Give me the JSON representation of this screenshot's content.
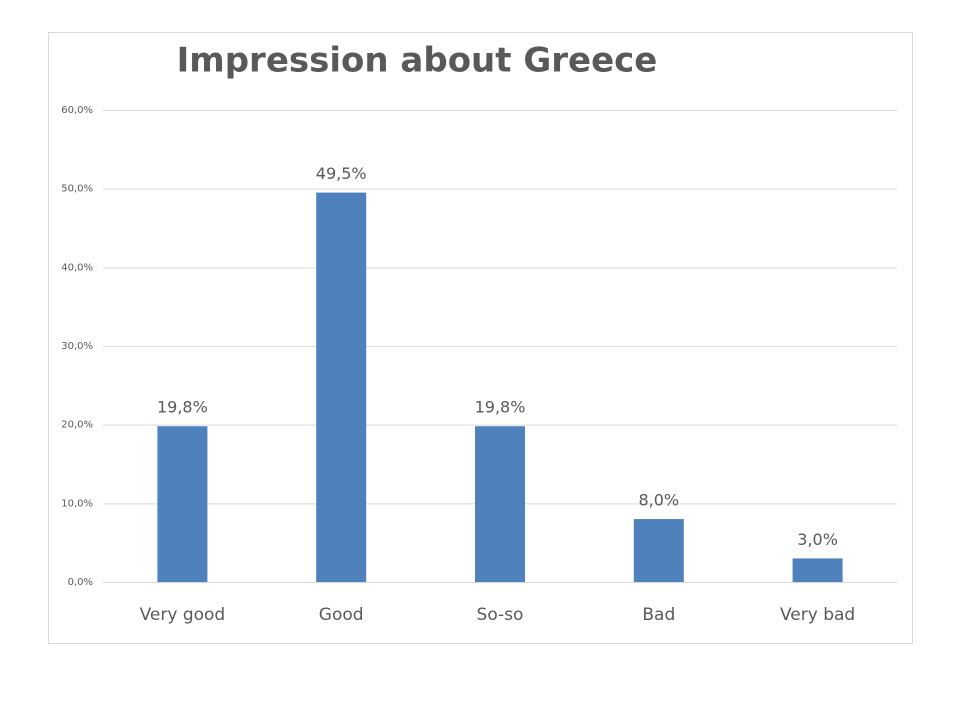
{
  "chart_data": {
    "type": "bar",
    "title": "Impression about Greece",
    "categories": [
      "Very good",
      "Good",
      "So-so",
      "Bad",
      "Very bad"
    ],
    "values": [
      19.8,
      49.5,
      19.8,
      8.0,
      3.0
    ],
    "value_labels": [
      "19,8%",
      "49,5%",
      "19,8%",
      "8,0%",
      "3,0%"
    ],
    "color": "#4f81bd",
    "ylim": [
      0,
      60
    ],
    "yticks": [
      {
        "value": 0,
        "label": "0,0%"
      },
      {
        "value": 10,
        "label": "10,0%"
      },
      {
        "value": 20,
        "label": "20,0%"
      },
      {
        "value": 30,
        "label": "30,0%"
      },
      {
        "value": 40,
        "label": "40,0%"
      },
      {
        "value": 50,
        "label": "50,0%"
      },
      {
        "value": 60,
        "label": "60,0%"
      }
    ],
    "grid": true
  }
}
